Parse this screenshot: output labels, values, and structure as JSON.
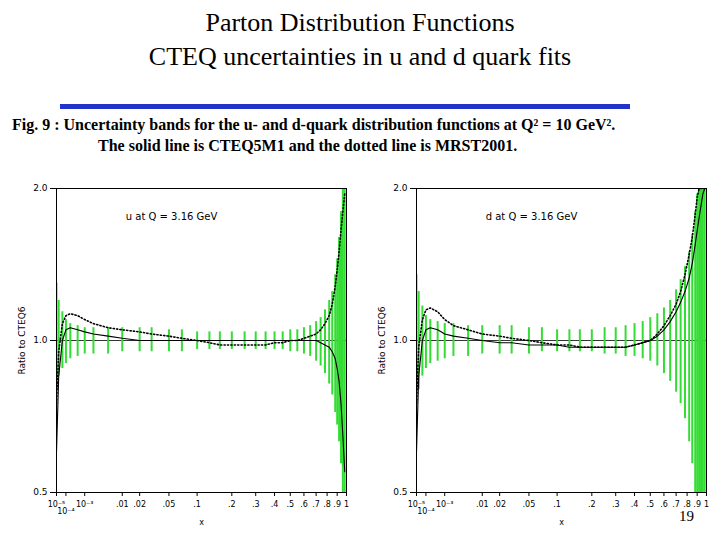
{
  "slide": {
    "title": "Parton Distribution Functions",
    "subtitle": "CTEQ uncertainties in u and d quark fits",
    "caption": [
      "Fig. 9 : Uncertainty bands for the u- and d-quark distribution functions at Q² = 10 GeV².",
      "The solid line is CTEQ5M1 and the dotted line is MRST2001."
    ],
    "page_number": "19"
  },
  "chart_data": [
    {
      "type": "line",
      "annotation": "u at Q = 3.16 GeV",
      "xlabel": "x",
      "ylabel": "Ratio to CTEQ6",
      "log": "y",
      "grid": "y",
      "xlim": [
        1e-05,
        1
      ],
      "ylim": [
        0.5,
        2.0
      ],
      "xticks": [
        {
          "value": 1e-05,
          "label": "10⁻⁵"
        },
        {
          "value": 0.0001,
          "label": "10⁻⁴"
        },
        {
          "value": 0.001,
          "label": "10⁻³"
        },
        {
          "value": 0.01,
          "label": ".01"
        },
        {
          "value": 0.02,
          "label": ".02"
        },
        {
          "value": 0.05,
          "label": ".05"
        },
        {
          "value": 0.1,
          "label": ".1"
        },
        {
          "value": 0.2,
          "label": ".2"
        },
        {
          "value": 0.3,
          "label": ".3"
        },
        {
          "value": 0.4,
          "label": ".4"
        },
        {
          "value": 0.5,
          "label": ".5"
        },
        {
          "value": 0.6,
          "label": ".6"
        },
        {
          "value": 0.7,
          "label": ".7"
        },
        {
          "value": 0.8,
          "label": ".8"
        },
        {
          "value": 0.9,
          "label": ".9"
        },
        1
      ],
      "yticks": [
        0.5,
        {
          "value": 1.0,
          "label": "1.0"
        },
        {
          "value": 2.0,
          "label": "2.0"
        }
      ],
      "x": [
        1e-05,
        2e-05,
        5e-05,
        0.0001,
        0.0002,
        0.0005,
        0.001,
        0.002,
        0.005,
        0.01,
        0.02,
        0.03,
        0.05,
        0.07,
        0.1,
        0.13,
        0.16,
        0.2,
        0.25,
        0.3,
        0.35,
        0.4,
        0.45,
        0.5,
        0.55,
        0.6,
        0.65,
        0.7,
        0.74,
        0.78,
        0.82,
        0.85,
        0.88,
        0.9,
        0.92,
        0.94,
        0.96,
        0.98
      ],
      "band": {
        "color": "#33dd33",
        "lower": [
          0.8,
          0.85,
          0.88,
          0.9,
          0.92,
          0.93,
          0.94,
          0.94,
          0.94,
          0.95,
          0.95,
          0.95,
          0.95,
          0.95,
          0.96,
          0.96,
          0.96,
          0.96,
          0.96,
          0.96,
          0.96,
          0.96,
          0.96,
          0.95,
          0.95,
          0.94,
          0.93,
          0.91,
          0.89,
          0.86,
          0.82,
          0.78,
          0.72,
          0.68,
          0.63,
          0.57,
          0.5,
          0.5
        ],
        "upper": [
          1.3,
          1.2,
          1.14,
          1.1,
          1.08,
          1.07,
          1.06,
          1.06,
          1.06,
          1.06,
          1.06,
          1.06,
          1.05,
          1.05,
          1.04,
          1.04,
          1.04,
          1.04,
          1.04,
          1.04,
          1.04,
          1.04,
          1.04,
          1.05,
          1.05,
          1.06,
          1.07,
          1.09,
          1.11,
          1.15,
          1.2,
          1.25,
          1.35,
          1.45,
          1.6,
          1.8,
          2.0,
          2.0
        ]
      },
      "series": [
        {
          "color": "#000000",
          "line_style": "solid",
          "values": [
            0.6,
            0.85,
            1.0,
            1.05,
            1.06,
            1.05,
            1.04,
            1.03,
            1.02,
            1.01,
            1.0,
            1.0,
            1.0,
            1.0,
            1.0,
            1.0,
            1.0,
            1.0,
            1.0,
            1.0,
            1.0,
            1.0,
            1.0,
            1.0,
            1.0,
            1.0,
            1.0,
            1.0,
            0.99,
            0.98,
            0.97,
            0.95,
            0.92,
            0.88,
            0.83,
            0.75,
            0.65,
            0.55
          ]
        },
        {
          "color": "#000000",
          "line_style": "dotted",
          "values": [
            0.75,
            0.95,
            1.08,
            1.12,
            1.13,
            1.12,
            1.1,
            1.08,
            1.06,
            1.05,
            1.04,
            1.03,
            1.02,
            1.01,
            1.0,
            0.99,
            0.98,
            0.98,
            0.98,
            0.98,
            0.98,
            0.99,
            0.99,
            1.0,
            1.0,
            1.01,
            1.02,
            1.03,
            1.05,
            1.08,
            1.12,
            1.18,
            1.28,
            1.38,
            1.5,
            1.65,
            1.8,
            1.95
          ]
        }
      ]
    },
    {
      "type": "line",
      "annotation": "d at Q = 3.16 GeV",
      "xlabel": "x",
      "ylabel": "Ratio to CTEQ6",
      "log": "y",
      "grid": "y",
      "xlim": [
        1e-05,
        1
      ],
      "ylim": [
        0.5,
        2.0
      ],
      "xticks": [
        {
          "value": 1e-05,
          "label": "10⁻⁵"
        },
        {
          "value": 0.0001,
          "label": "10⁻⁴"
        },
        {
          "value": 0.001,
          "label": "10⁻³"
        },
        {
          "value": 0.01,
          "label": ".01"
        },
        {
          "value": 0.02,
          "label": ".02"
        },
        {
          "value": 0.05,
          "label": ".05"
        },
        {
          "value": 0.1,
          "label": ".1"
        },
        {
          "value": 0.2,
          "label": ".2"
        },
        {
          "value": 0.3,
          "label": ".3"
        },
        {
          "value": 0.4,
          "label": ".4"
        },
        {
          "value": 0.5,
          "label": ".5"
        },
        {
          "value": 0.6,
          "label": ".6"
        },
        {
          "value": 0.7,
          "label": ".7"
        },
        {
          "value": 0.8,
          "label": ".8"
        },
        {
          "value": 0.9,
          "label": ".9"
        },
        1
      ],
      "yticks": [
        0.5,
        {
          "value": 1.0,
          "label": "1.0"
        },
        {
          "value": 2.0,
          "label": "2.0"
        }
      ],
      "x": [
        1e-05,
        2e-05,
        5e-05,
        0.0001,
        0.0002,
        0.0005,
        0.001,
        0.002,
        0.005,
        0.01,
        0.02,
        0.03,
        0.05,
        0.07,
        0.1,
        0.13,
        0.16,
        0.2,
        0.25,
        0.3,
        0.35,
        0.4,
        0.45,
        0.5,
        0.55,
        0.6,
        0.65,
        0.7,
        0.74,
        0.78,
        0.82,
        0.85,
        0.88,
        0.9,
        0.92,
        0.94,
        0.96,
        0.98
      ],
      "band": {
        "color": "#33dd33",
        "lower": [
          0.75,
          0.8,
          0.85,
          0.88,
          0.9,
          0.91,
          0.92,
          0.93,
          0.93,
          0.94,
          0.94,
          0.94,
          0.94,
          0.95,
          0.95,
          0.95,
          0.95,
          0.95,
          0.94,
          0.94,
          0.93,
          0.93,
          0.92,
          0.91,
          0.89,
          0.86,
          0.83,
          0.79,
          0.75,
          0.7,
          0.63,
          0.57,
          0.5,
          0.5,
          0.5,
          0.5,
          0.5,
          0.5
        ],
        "upper": [
          1.35,
          1.25,
          1.17,
          1.12,
          1.1,
          1.09,
          1.08,
          1.08,
          1.07,
          1.07,
          1.07,
          1.07,
          1.06,
          1.06,
          1.05,
          1.05,
          1.05,
          1.05,
          1.06,
          1.06,
          1.07,
          1.08,
          1.09,
          1.11,
          1.13,
          1.16,
          1.2,
          1.26,
          1.32,
          1.4,
          1.5,
          1.62,
          1.8,
          1.95,
          2.0,
          2.0,
          2.0,
          2.0
        ]
      },
      "series": [
        {
          "color": "#000000",
          "line_style": "solid",
          "values": [
            0.6,
            0.85,
            1.0,
            1.05,
            1.06,
            1.05,
            1.03,
            1.02,
            1.01,
            1.0,
            0.99,
            0.99,
            0.98,
            0.98,
            0.98,
            0.97,
            0.97,
            0.97,
            0.97,
            0.97,
            0.97,
            0.98,
            0.99,
            1.0,
            1.02,
            1.05,
            1.09,
            1.14,
            1.19,
            1.25,
            1.33,
            1.42,
            1.55,
            1.65,
            1.75,
            1.85,
            1.95,
            2.0
          ]
        },
        {
          "color": "#000000",
          "line_style": "dotted",
          "values": [
            0.75,
            0.97,
            1.1,
            1.15,
            1.16,
            1.14,
            1.1,
            1.07,
            1.05,
            1.03,
            1.02,
            1.01,
            1.0,
            0.99,
            0.98,
            0.98,
            0.97,
            0.97,
            0.97,
            0.97,
            0.97,
            0.98,
            0.99,
            1.0,
            1.03,
            1.07,
            1.12,
            1.18,
            1.25,
            1.35,
            1.48,
            1.6,
            1.78,
            1.92,
            2.0,
            2.0,
            2.0,
            2.0
          ]
        }
      ]
    }
  ]
}
